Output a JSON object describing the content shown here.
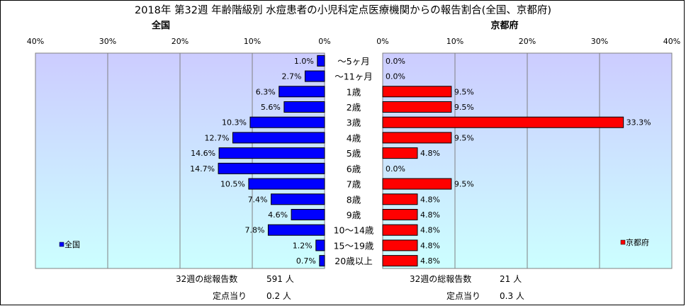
{
  "chart_data": {
    "type": "bar",
    "title": "2018年 第32週 年齢階級別 水痘患者の小児科定点医療機関からの報告割合(全国、京都府)",
    "categories": [
      "～5ヶ月",
      "～11ヶ月",
      "1歳",
      "2歳",
      "3歳",
      "4歳",
      "5歳",
      "6歳",
      "7歳",
      "8歳",
      "9歳",
      "10～14歳",
      "15～19歳",
      "20歳以上"
    ],
    "x_ticks": [
      "40%",
      "30%",
      "20%",
      "10%",
      "0%"
    ],
    "xlim": [
      0,
      40
    ],
    "grid": true,
    "series": [
      {
        "name": "全国",
        "panel": "left",
        "color": "#0000FF",
        "values": [
          1.0,
          2.7,
          6.3,
          5.6,
          10.3,
          12.7,
          14.6,
          14.7,
          10.5,
          7.4,
          4.6,
          7.8,
          1.2,
          0.7
        ],
        "labels": [
          "1.0%",
          "2.7%",
          "6.3%",
          "5.6%",
          "10.3%",
          "12.7%",
          "14.6%",
          "14.7%",
          "10.5%",
          "7.4%",
          "4.6%",
          "7.8%",
          "1.2%",
          "0.7%"
        ]
      },
      {
        "name": "京都府",
        "panel": "right",
        "color": "#FF0000",
        "values": [
          0.0,
          0.0,
          9.5,
          9.5,
          33.3,
          9.5,
          4.8,
          0.0,
          9.5,
          4.8,
          4.8,
          4.8,
          4.8,
          4.8
        ],
        "labels": [
          "0.0%",
          "0.0%",
          "9.5%",
          "9.5%",
          "33.3%",
          "9.5%",
          "4.8%",
          "0.0%",
          "9.5%",
          "4.8%",
          "4.8%",
          "4.8%",
          "4.8%",
          "4.8%"
        ]
      }
    ],
    "legend_placement": "bottom-left / bottom-right inside each panel"
  },
  "panel_titles": {
    "left": "全国",
    "right": "京都府"
  },
  "x_ticks_right": [
    "0%",
    "10%",
    "20%",
    "30%",
    "40%"
  ],
  "legend": {
    "left": "全国",
    "right": "京都府"
  },
  "footer": {
    "left_total_label": "32週の総報告数",
    "left_total_value": "591 人",
    "left_per_label": "定点当り",
    "left_per_value": "0.2 人",
    "right_total_label": "32週の総報告数",
    "right_total_value": "21 人",
    "right_per_label": "定点当り",
    "right_per_value": "0.3 人"
  },
  "colors": {
    "plot_bg_top": "#CCCCFF",
    "plot_bg_bottom": "#CCFFFF",
    "grid": "#808080",
    "bar_left": "#0000FF",
    "bar_right": "#FF0000"
  }
}
